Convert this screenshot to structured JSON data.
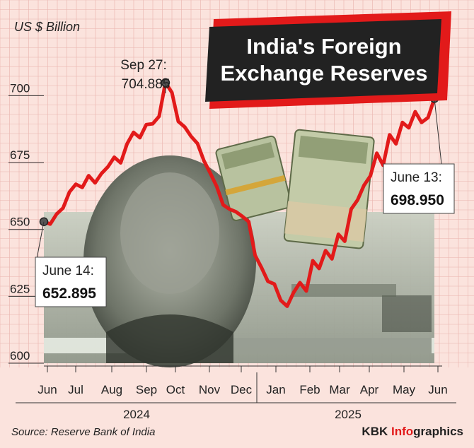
{
  "title_line1": "India's Foreign",
  "title_line2": "Exchange Reserves",
  "unit_label": "US $ Billion",
  "source": "Source: Reserve Bank of India",
  "brand_prefix": "KBK ",
  "brand_accent": "Info",
  "brand_suffix": "graphics",
  "colors": {
    "line": "#e21a1a",
    "title_bg": "#222222",
    "title_shadow": "#e21a1a",
    "grid": "#e9b3ad",
    "accent": "#e21a1a"
  },
  "annotations": {
    "start": {
      "date": "June 14:",
      "value": "652.895"
    },
    "peak": {
      "date": "Sep 27:",
      "value": "704.885"
    },
    "end": {
      "date": "June 13:",
      "value": "698.950"
    }
  },
  "chart_data": {
    "type": "line",
    "title": "India's Foreign Exchange Reserves",
    "ylabel": "US $ Billion",
    "ylim": [
      600,
      712
    ],
    "yticks": [
      600,
      625,
      650,
      675,
      700
    ],
    "grid": true,
    "years": [
      {
        "label": "2024",
        "month_span": [
          "Jun",
          "Dec"
        ]
      },
      {
        "label": "2025",
        "month_span": [
          "Jan",
          "Jun"
        ]
      }
    ],
    "months": [
      "Jun",
      "Jul",
      "Aug",
      "Sep",
      "Oct",
      "Nov",
      "Dec",
      "Jan",
      "Feb",
      "Mar",
      "Apr",
      "May",
      "Jun"
    ],
    "series": [
      {
        "values": [
          652.895,
          652,
          655.8,
          658,
          664,
          666.9,
          665.7,
          670.1,
          667.4,
          670.9,
          673.4,
          677,
          674.9,
          682,
          686.3,
          684.3,
          689.2,
          689.5,
          692.3,
          704.885,
          701.2,
          690.4,
          688.3,
          684.8,
          682.1,
          675.7,
          671,
          666.1,
          659.2,
          657.6,
          656.6,
          654.9,
          652.9,
          640.3,
          635.7,
          630.6,
          629.6,
          623.5,
          621.3,
          626.4,
          630.1,
          627,
          638.3,
          635.4,
          642.1,
          639,
          648.2,
          645.6,
          657.6,
          661,
          666.5,
          670,
          678.5,
          674,
          685.4,
          682,
          690,
          688,
          694,
          690,
          691.8,
          698.95
        ]
      }
    ]
  }
}
